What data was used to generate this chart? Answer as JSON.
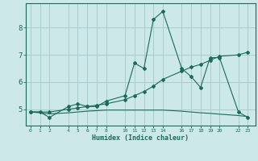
{
  "title": "",
  "xlabel": "Humidex (Indice chaleur)",
  "bg_color": "#cce8e8",
  "grid_color": "#aacccc",
  "line_color": "#1a6b5a",
  "xticks": [
    0,
    1,
    2,
    4,
    5,
    6,
    7,
    8,
    10,
    11,
    12,
    13,
    14,
    16,
    17,
    18,
    19,
    20,
    22,
    23
  ],
  "yticks": [
    5,
    6,
    7,
    8
  ],
  "ylim": [
    4.4,
    8.9
  ],
  "xlim": [
    -0.5,
    23.8
  ],
  "series": [
    {
      "x": [
        0,
        1,
        2,
        4,
        5,
        6,
        7,
        8,
        10,
        11,
        12,
        13,
        14,
        16,
        17,
        18,
        19,
        20,
        22,
        23
      ],
      "y": [
        4.9,
        4.9,
        4.7,
        5.1,
        5.2,
        5.1,
        5.1,
        5.3,
        5.5,
        6.7,
        6.5,
        8.3,
        8.6,
        6.5,
        6.2,
        5.8,
        6.9,
        6.9,
        4.9,
        4.7
      ],
      "markers": true
    },
    {
      "x": [
        0,
        2,
        4,
        5,
        6,
        7,
        8,
        10,
        11,
        12,
        13,
        14,
        16,
        17,
        18,
        19,
        20,
        22,
        23
      ],
      "y": [
        4.9,
        4.9,
        5.0,
        5.05,
        5.1,
        5.15,
        5.2,
        5.35,
        5.5,
        5.65,
        5.85,
        6.1,
        6.4,
        6.55,
        6.65,
        6.8,
        6.95,
        7.0,
        7.1
      ],
      "markers": true
    },
    {
      "x": [
        0,
        1,
        2,
        4,
        5,
        6,
        7,
        8,
        10,
        11,
        12,
        13,
        14,
        16,
        17,
        18,
        19,
        20,
        22,
        23
      ],
      "y": [
        4.9,
        4.87,
        4.83,
        4.87,
        4.9,
        4.93,
        4.95,
        4.97,
        4.97,
        4.97,
        4.97,
        4.97,
        4.97,
        4.93,
        4.9,
        4.87,
        4.85,
        4.82,
        4.77,
        4.73
      ],
      "markers": false
    }
  ]
}
